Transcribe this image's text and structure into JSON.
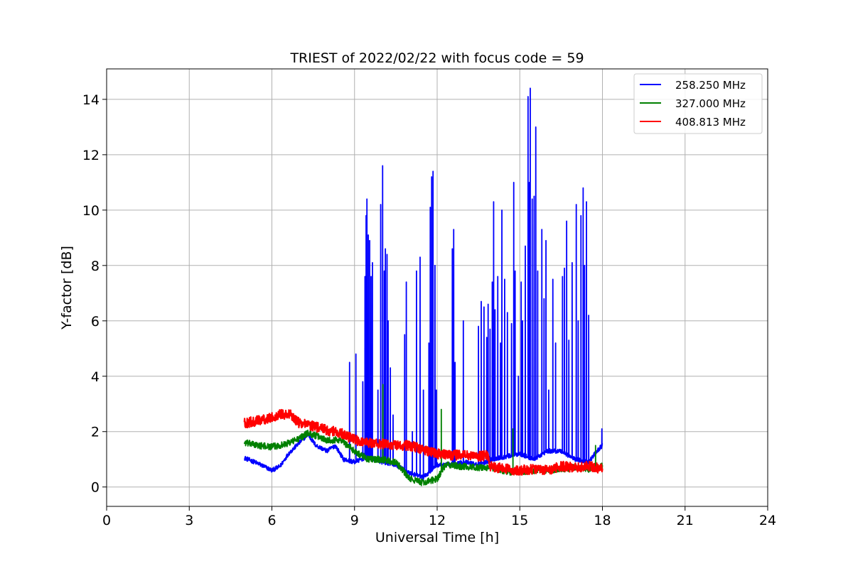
{
  "chart_data": {
    "type": "line",
    "title": "TRIEST of 2022/02/22 with focus code = 59",
    "xlabel": "Universal Time [h]",
    "ylabel": "Y-factor [dB]",
    "xlim": [
      0,
      24
    ],
    "ylim": [
      -0.7,
      15.1
    ],
    "xticks": [
      0,
      3,
      6,
      9,
      12,
      15,
      18,
      21,
      24
    ],
    "xtick_labels": [
      "0",
      "3",
      "6",
      "9",
      "12",
      "15",
      "18",
      "21",
      "24"
    ],
    "yticks": [
      0,
      2,
      4,
      6,
      8,
      10,
      12,
      14
    ],
    "ytick_labels": [
      "0",
      "2",
      "4",
      "6",
      "8",
      "10",
      "12",
      "14"
    ],
    "grid": true,
    "legend_position": "top-right",
    "series": [
      {
        "name": "258.250 MHz",
        "color": "#0000ff",
        "noise": 0.08,
        "base": [
          [
            5.0,
            1.05
          ],
          [
            5.5,
            0.85
          ],
          [
            6.0,
            0.6
          ],
          [
            6.3,
            0.75
          ],
          [
            6.6,
            1.2
          ],
          [
            7.0,
            1.6
          ],
          [
            7.3,
            1.9
          ],
          [
            7.6,
            1.5
          ],
          [
            8.0,
            1.3
          ],
          [
            8.3,
            1.5
          ],
          [
            8.6,
            1.0
          ],
          [
            9.0,
            0.9
          ],
          [
            9.5,
            1.1
          ],
          [
            10.0,
            0.9
          ],
          [
            10.5,
            0.8
          ],
          [
            11.0,
            0.5
          ],
          [
            11.5,
            0.35
          ],
          [
            12.0,
            0.8
          ],
          [
            12.5,
            0.8
          ],
          [
            13.0,
            0.9
          ],
          [
            13.5,
            0.8
          ],
          [
            14.0,
            1.0
          ],
          [
            14.5,
            1.1
          ],
          [
            15.0,
            1.2
          ],
          [
            15.5,
            1.0
          ],
          [
            16.0,
            1.3
          ],
          [
            16.5,
            1.3
          ],
          [
            17.0,
            1.0
          ],
          [
            17.5,
            0.9
          ],
          [
            17.8,
            1.3
          ],
          [
            18.0,
            1.5
          ]
        ],
        "spikes": [
          [
            8.82,
            4.5
          ],
          [
            9.05,
            4.8
          ],
          [
            9.3,
            3.8
          ],
          [
            9.38,
            7.6
          ],
          [
            9.42,
            9.8
          ],
          [
            9.45,
            10.4
          ],
          [
            9.5,
            9.1
          ],
          [
            9.55,
            8.9
          ],
          [
            9.6,
            7.6
          ],
          [
            9.65,
            8.1
          ],
          [
            9.85,
            3.5
          ],
          [
            9.95,
            10.2
          ],
          [
            10.02,
            11.6
          ],
          [
            10.08,
            7.8
          ],
          [
            10.12,
            8.6
          ],
          [
            10.18,
            8.4
          ],
          [
            10.22,
            6.0
          ],
          [
            10.3,
            4.3
          ],
          [
            10.4,
            2.6
          ],
          [
            10.82,
            5.5
          ],
          [
            10.88,
            7.4
          ],
          [
            11.1,
            2.0
          ],
          [
            11.25,
            7.8
          ],
          [
            11.38,
            8.3
          ],
          [
            11.5,
            3.5
          ],
          [
            11.7,
            5.2
          ],
          [
            11.75,
            10.1
          ],
          [
            11.8,
            11.2
          ],
          [
            11.85,
            11.4
          ],
          [
            11.92,
            8.0
          ],
          [
            11.97,
            3.5
          ],
          [
            12.55,
            8.6
          ],
          [
            12.6,
            9.3
          ],
          [
            12.65,
            4.5
          ],
          [
            12.95,
            6.0
          ],
          [
            13.5,
            5.8
          ],
          [
            13.6,
            6.7
          ],
          [
            13.7,
            6.5
          ],
          [
            13.8,
            5.4
          ],
          [
            13.85,
            6.6
          ],
          [
            13.92,
            5.7
          ],
          [
            14.0,
            7.4
          ],
          [
            14.05,
            10.3
          ],
          [
            14.1,
            6.4
          ],
          [
            14.2,
            7.6
          ],
          [
            14.3,
            5.2
          ],
          [
            14.35,
            10.0
          ],
          [
            14.45,
            7.5
          ],
          [
            14.55,
            6.3
          ],
          [
            14.7,
            5.9
          ],
          [
            14.78,
            11.0
          ],
          [
            14.83,
            7.8
          ],
          [
            14.95,
            4.0
          ],
          [
            15.05,
            7.4
          ],
          [
            15.1,
            6.0
          ],
          [
            15.2,
            8.7
          ],
          [
            15.3,
            14.1
          ],
          [
            15.35,
            11.0
          ],
          [
            15.38,
            14.4
          ],
          [
            15.45,
            10.4
          ],
          [
            15.52,
            10.5
          ],
          [
            15.58,
            13.0
          ],
          [
            15.65,
            7.8
          ],
          [
            15.8,
            9.3
          ],
          [
            15.88,
            6.8
          ],
          [
            15.95,
            8.9
          ],
          [
            16.05,
            3.5
          ],
          [
            16.2,
            7.5
          ],
          [
            16.3,
            5.2
          ],
          [
            16.55,
            7.6
          ],
          [
            16.62,
            7.9
          ],
          [
            16.7,
            9.6
          ],
          [
            16.78,
            5.3
          ],
          [
            16.9,
            8.1
          ],
          [
            17.05,
            10.2
          ],
          [
            17.12,
            6.0
          ],
          [
            17.22,
            9.8
          ],
          [
            17.3,
            10.8
          ],
          [
            17.35,
            8.0
          ],
          [
            17.42,
            10.3
          ],
          [
            17.5,
            6.2
          ],
          [
            17.98,
            2.1
          ]
        ]
      },
      {
        "name": "327.000 MHz",
        "color": "#008000",
        "noise": 0.12,
        "base": [
          [
            5.0,
            1.6
          ],
          [
            5.5,
            1.5
          ],
          [
            6.0,
            1.45
          ],
          [
            6.5,
            1.55
          ],
          [
            7.0,
            1.75
          ],
          [
            7.3,
            1.95
          ],
          [
            7.6,
            1.85
          ],
          [
            8.0,
            1.7
          ],
          [
            8.5,
            1.7
          ],
          [
            9.0,
            1.3
          ],
          [
            9.5,
            1.0
          ],
          [
            10.0,
            1.0
          ],
          [
            10.5,
            0.9
          ],
          [
            11.0,
            0.3
          ],
          [
            11.5,
            0.15
          ],
          [
            12.0,
            0.3
          ],
          [
            12.3,
            0.8
          ],
          [
            12.8,
            0.75
          ],
          [
            13.5,
            0.7
          ],
          [
            14.0,
            0.7
          ],
          [
            14.5,
            0.55
          ],
          [
            15.0,
            0.55
          ],
          [
            15.5,
            0.6
          ],
          [
            16.0,
            0.6
          ],
          [
            16.5,
            0.65
          ],
          [
            17.0,
            0.7
          ],
          [
            17.5,
            0.65
          ],
          [
            18.0,
            0.75
          ]
        ],
        "spikes": [
          [
            10.03,
            3.7
          ],
          [
            12.15,
            2.8
          ],
          [
            14.75,
            2.1
          ],
          [
            17.75,
            1.5
          ]
        ]
      },
      {
        "name": "408.813 MHz",
        "color": "#ff0000",
        "noise": 0.18,
        "base": [
          [
            5.0,
            2.3
          ],
          [
            5.5,
            2.4
          ],
          [
            6.0,
            2.5
          ],
          [
            6.3,
            2.65
          ],
          [
            6.7,
            2.6
          ],
          [
            7.0,
            2.3
          ],
          [
            7.5,
            2.2
          ],
          [
            8.0,
            2.05
          ],
          [
            8.5,
            1.95
          ],
          [
            9.0,
            1.7
          ],
          [
            9.5,
            1.6
          ],
          [
            10.0,
            1.55
          ],
          [
            10.5,
            1.5
          ],
          [
            11.0,
            1.5
          ],
          [
            11.5,
            1.35
          ],
          [
            12.0,
            1.2
          ],
          [
            12.5,
            1.15
          ],
          [
            13.0,
            1.15
          ],
          [
            13.5,
            1.1
          ],
          [
            13.85,
            1.15
          ],
          [
            13.9,
            0.75
          ],
          [
            14.5,
            0.65
          ],
          [
            15.0,
            0.6
          ],
          [
            15.5,
            0.65
          ],
          [
            16.0,
            0.6
          ],
          [
            16.5,
            0.75
          ],
          [
            17.0,
            0.7
          ],
          [
            17.5,
            0.75
          ],
          [
            18.0,
            0.65
          ]
        ],
        "spikes": []
      }
    ]
  }
}
